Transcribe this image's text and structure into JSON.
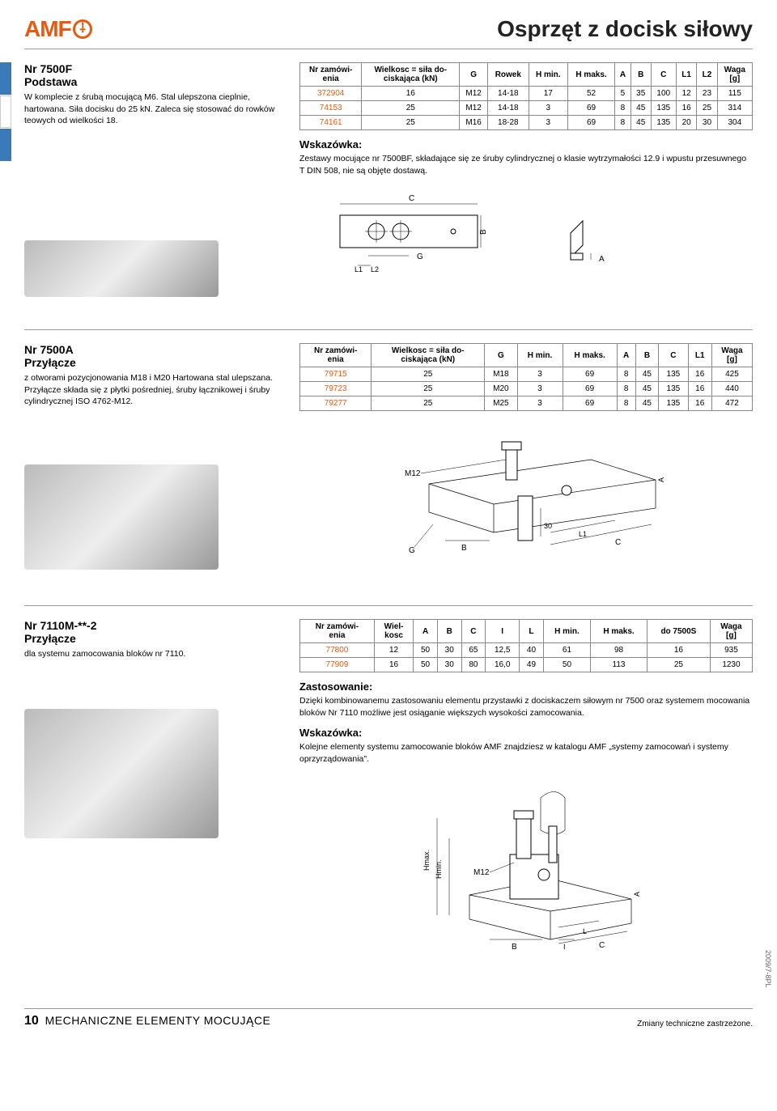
{
  "header": {
    "logo_text": "AMF",
    "page_title": "Osprzęt z docisk siłowy"
  },
  "section1": {
    "nr": "Nr 7500F",
    "name": "Podstawa",
    "desc": "W komplecie z śrubą mocującą M6. Stal ulepszona cieplnie, hartowana. Siła docisku do 25 kN. Zaleca się stosować do rowków teowych od wielkości 18.",
    "table": {
      "columns": [
        "Nr zamówi-\nenia",
        "Wielkosc = siła do-\nciskająca (kN)",
        "G",
        "Rowek",
        "H min.",
        "H maks.",
        "A",
        "B",
        "C",
        "L1",
        "L2",
        "Waga\n[g]"
      ],
      "rows": [
        [
          "372904",
          "16",
          "M12",
          "14-18",
          "17",
          "52",
          "5",
          "35",
          "100",
          "12",
          "23",
          "115"
        ],
        [
          "74153",
          "25",
          "M12",
          "14-18",
          "3",
          "69",
          "8",
          "45",
          "135",
          "16",
          "25",
          "314"
        ],
        [
          "74161",
          "25",
          "M16",
          "18-28",
          "3",
          "69",
          "8",
          "45",
          "135",
          "20",
          "30",
          "304"
        ]
      ]
    },
    "note_head": "Wskazówka:",
    "note_text": "Zestawy mocujące nr 7500BF, składające się ze śruby cylindrycznej o klasie wytrzymałości 12.9 i wpustu przesuwnego T DIN 508, nie są objęte dostawą.",
    "diagram": {
      "labels": {
        "c": "C",
        "b": "B",
        "g": "G",
        "a": "A",
        "l1": "L1",
        "l2": "L2"
      },
      "stroke": "#000",
      "fill": "#fff"
    }
  },
  "section2": {
    "nr": "Nr 7500A",
    "name": "Przyłącze",
    "desc": "z otworami pozycjonowania M18 i M20 Hartowana stal ulepszana. Przyłącze składa się z płytki pośredniej, śruby łącznikowej i śruby cylindrycznej ISO 4762-M12.",
    "table": {
      "columns": [
        "Nr zamówi-\nenia",
        "Wielkosc = siła do-\nciskająca (kN)",
        "G",
        "H min.",
        "H maks.",
        "A",
        "B",
        "C",
        "L1",
        "Waga\n[g]"
      ],
      "rows": [
        [
          "79715",
          "25",
          "M18",
          "3",
          "69",
          "8",
          "45",
          "135",
          "16",
          "425"
        ],
        [
          "79723",
          "25",
          "M20",
          "3",
          "69",
          "8",
          "45",
          "135",
          "16",
          "440"
        ],
        [
          "79277",
          "25",
          "M25",
          "3",
          "69",
          "8",
          "45",
          "135",
          "16",
          "472"
        ]
      ]
    },
    "diagram": {
      "labels": {
        "m12": "M12",
        "b": "B",
        "g": "G",
        "a": "A",
        "c": "C",
        "l1": "L1",
        "thirty": "30"
      },
      "stroke": "#000"
    }
  },
  "section3": {
    "nr": "Nr 7110M-**-2",
    "name": "Przyłącze",
    "desc": "dla systemu zamocowania bloków nr 7110.",
    "table": {
      "columns": [
        "Nr zamówi-\nenia",
        "Wiel-\nkosc",
        "A",
        "B",
        "C",
        "I",
        "L",
        "H min.",
        "H maks.",
        "do 7500S",
        "Waga\n[g]"
      ],
      "rows": [
        [
          "77800",
          "12",
          "50",
          "30",
          "65",
          "12,5",
          "40",
          "61",
          "98",
          "16",
          "935"
        ],
        [
          "77909",
          "16",
          "50",
          "30",
          "80",
          "16,0",
          "49",
          "50",
          "113",
          "25",
          "1230"
        ]
      ]
    },
    "note1_head": "Zastosowanie:",
    "note1_text": "Dzięki kombinowanemu zastosowaniu elementu przystawki z dociskaczem siłowym nr 7500 oraz systemem mocowania bloków Nr 7110 możliwe jest osiąganie większych wysokości zamocowania.",
    "note2_head": "Wskazówka:",
    "note2_text": "Kolejne elementy systemu zamocowanie bloków AMF znajdziesz w katalogu AMF „systemy zamocowań i systemy oprzyrządowania\".",
    "diagram": {
      "labels": {
        "m12": "M12",
        "hmin": "Hmin.",
        "hmax": "Hmax.",
        "a": "A",
        "b": "B",
        "c": "C",
        "i": "I",
        "l": "L"
      },
      "stroke": "#000"
    }
  },
  "footer": {
    "page_no": "10",
    "section_title": "MECHANICZNE ELEMENTY MOCUJĄCE",
    "disclaimer": "Zmiany techniczne zastrzeżone.",
    "side_code": "2009/7-8PL"
  },
  "colors": {
    "accent": "#e85a0f",
    "blue": "#3a7ab8",
    "border": "#888"
  }
}
